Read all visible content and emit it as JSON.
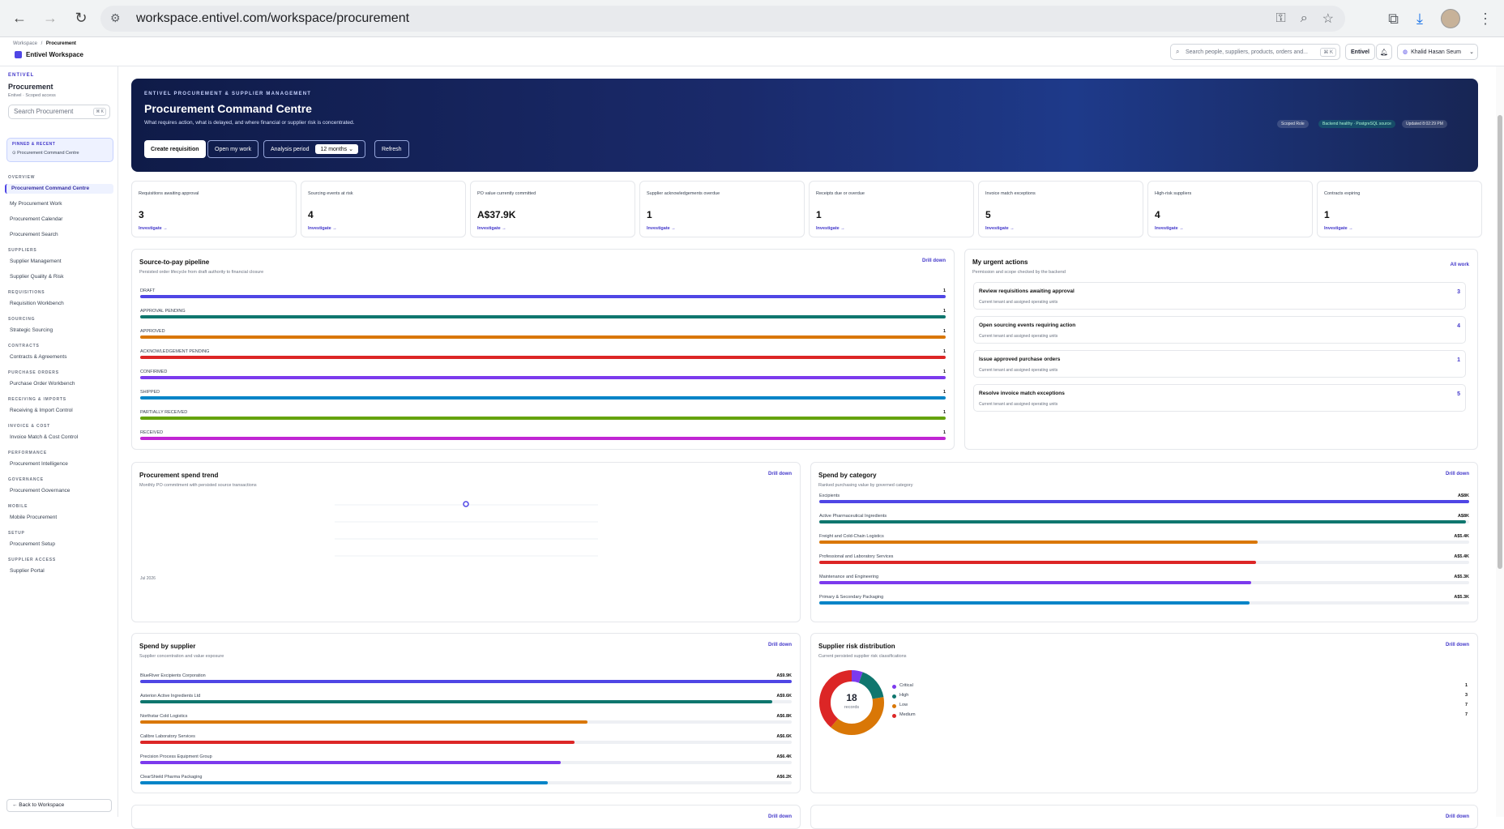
{
  "browser": {
    "url": "workspace.entivel.com/workspace/procurement"
  },
  "topbar": {
    "crumb_root": "Workspace",
    "crumb_sep": "/",
    "crumb_current": "Procurement",
    "workspace_name": "Entivel Workspace",
    "search_placeholder": "Search people, suppliers, products, orders and...",
    "search_kbd": "⌘ K",
    "tenant": "Entivel",
    "user": "Khalid Hasan Seum"
  },
  "sidebar": {
    "brand": "ENTIVEL",
    "title": "Procurement",
    "subtitle": "Entivel · Scoped access",
    "search_placeholder": "Search Procurement",
    "search_kbd": "⌘ K",
    "pinned_heading": "PINNED & RECENT",
    "pinned_item": "⊙ Procurement Command Centre",
    "sections": [
      {
        "label": "OVERVIEW",
        "items": [
          "Procurement Command Centre",
          "My Procurement Work",
          "Procurement Calendar",
          "Procurement Search"
        ]
      },
      {
        "label": "SUPPLIERS",
        "items": [
          "Supplier Management",
          "Supplier Quality & Risk"
        ]
      },
      {
        "label": "REQUISITIONS",
        "items": [
          "Requisition Workbench"
        ]
      },
      {
        "label": "SOURCING",
        "items": [
          "Strategic Sourcing"
        ]
      },
      {
        "label": "CONTRACTS",
        "items": [
          "Contracts & Agreements"
        ]
      },
      {
        "label": "PURCHASE ORDERS",
        "items": [
          "Purchase Order Workbench"
        ]
      },
      {
        "label": "RECEIVING & IMPORTS",
        "items": [
          "Receiving & Import Control"
        ]
      },
      {
        "label": "INVOICE & COST",
        "items": [
          "Invoice Match & Cost Control"
        ]
      },
      {
        "label": "PERFORMANCE",
        "items": [
          "Procurement Intelligence"
        ]
      },
      {
        "label": "GOVERNANCE",
        "items": [
          "Procurement Governance"
        ]
      },
      {
        "label": "MOBILE",
        "items": [
          "Mobile Procurement"
        ]
      },
      {
        "label": "SETUP",
        "items": [
          "Procurement Setup"
        ]
      },
      {
        "label": "SUPPLIER ACCESS",
        "items": [
          "Supplier Portal"
        ]
      }
    ],
    "back": "← Back to Workspace"
  },
  "hero": {
    "eyebrow": "ENTIVEL PROCUREMENT & SUPPLIER MANAGEMENT",
    "title": "Procurement Command Centre",
    "description": "What requires action, what is delayed, and where financial or supplier risk is concentrated.",
    "create": "Create requisition",
    "mywork": "Open my work",
    "period_label": "Analysis period",
    "period_value": "12 months",
    "refresh": "Refresh",
    "pill_role": "Scoped Role",
    "pill_backend": "Backend healthy · PostgreSQL source",
    "pill_updated": "Updated 8:02:29 PM"
  },
  "kpis": [
    {
      "label": "Requisitions awaiting approval",
      "value": "3",
      "action": "Investigate →"
    },
    {
      "label": "Sourcing events at risk",
      "value": "4",
      "action": "Investigate →"
    },
    {
      "label": "PO value currently committed",
      "value": "A$37.9K",
      "action": "Investigate →"
    },
    {
      "label": "Supplier acknowledgements overdue",
      "value": "1",
      "action": "Investigate →"
    },
    {
      "label": "Receipts due or overdue",
      "value": "1",
      "action": "Investigate →"
    },
    {
      "label": "Invoice match exceptions",
      "value": "5",
      "action": "Investigate →"
    },
    {
      "label": "High-risk suppliers",
      "value": "4",
      "action": "Investigate →"
    },
    {
      "label": "Contracts expiring",
      "value": "1",
      "action": "Investigate →"
    }
  ],
  "pipeline": {
    "title": "Source-to-pay pipeline",
    "subtitle": "Persisted order lifecycle from draft authority to financial closure",
    "drill": "Drill down",
    "rows": [
      {
        "label": "DRAFT",
        "value": "1",
        "fill": 1.0,
        "color": "#4f46e5"
      },
      {
        "label": "APPROVAL PENDING",
        "value": "1",
        "fill": 1.0,
        "color": "#0f766e"
      },
      {
        "label": "APPROVED",
        "value": "1",
        "fill": 1.0,
        "color": "#d97706"
      },
      {
        "label": "ACKNOWLEDGEMENT PENDING",
        "value": "1",
        "fill": 1.0,
        "color": "#dc2626"
      },
      {
        "label": "CONFIRMED",
        "value": "1",
        "fill": 1.0,
        "color": "#7c3aed"
      },
      {
        "label": "SHIPPED",
        "value": "1",
        "fill": 1.0,
        "color": "#0284c7"
      },
      {
        "label": "PARTIALLY RECEIVED",
        "value": "1",
        "fill": 1.0,
        "color": "#65a30d"
      },
      {
        "label": "RECEIVED",
        "value": "1",
        "fill": 1.0,
        "color": "#c026d3"
      }
    ]
  },
  "urgent": {
    "title": "My urgent actions",
    "subtitle": "Permission and scope checked by the backend",
    "all": "All work",
    "items": [
      {
        "title": "Review requisitions awaiting approval",
        "sub": "Current tenant and assigned operating units",
        "count": "3"
      },
      {
        "title": "Open sourcing events requiring action",
        "sub": "Current tenant and assigned operating units",
        "count": "4"
      },
      {
        "title": "Issue approved purchase orders",
        "sub": "Current tenant and assigned operating units",
        "count": "1"
      },
      {
        "title": "Resolve invoice match exceptions",
        "sub": "Current tenant and assigned operating units",
        "count": "5"
      }
    ]
  },
  "spend_trend": {
    "title": "Procurement spend trend",
    "subtitle": "Monthly PO commitment with persisted source transactions",
    "drill": "Drill down",
    "x_label": "Jul 2026"
  },
  "spend_category": {
    "title": "Spend by category",
    "subtitle": "Ranked purchasing value by governed category",
    "drill": "Drill down",
    "rows": [
      {
        "label": "Excipients",
        "value": "A$8K",
        "fill": 1.0,
        "color": "#4f46e5"
      },
      {
        "label": "Active Pharmaceutical Ingredients",
        "value": "A$8K",
        "fill": 0.995,
        "color": "#0f766e"
      },
      {
        "label": "Freight and Cold-Chain Logistics",
        "value": "A$5.4K",
        "fill": 0.675,
        "color": "#d97706"
      },
      {
        "label": "Professional and Laboratory Services",
        "value": "A$5.4K",
        "fill": 0.672,
        "color": "#dc2626"
      },
      {
        "label": "Maintenance and Engineering",
        "value": "A$5.3K",
        "fill": 0.665,
        "color": "#7c3aed"
      },
      {
        "label": "Primary & Secondary Packaging",
        "value": "A$5.3K",
        "fill": 0.662,
        "color": "#0284c7"
      }
    ]
  },
  "spend_supplier": {
    "title": "Spend by supplier",
    "subtitle": "Supplier concentration and value exposure",
    "drill": "Drill down",
    "rows": [
      {
        "label": "BlueRiver Excipients Corporation",
        "value": "A$9.9K",
        "fill": 1.0,
        "color": "#4f46e5"
      },
      {
        "label": "Asterion Active Ingredients Ltd",
        "value": "A$9.6K",
        "fill": 0.97,
        "color": "#0f766e"
      },
      {
        "label": "Northstar Cold Logistics",
        "value": "A$6.8K",
        "fill": 0.687,
        "color": "#d97706"
      },
      {
        "label": "Calibre Laboratory Services",
        "value": "A$6.6K",
        "fill": 0.667,
        "color": "#dc2626"
      },
      {
        "label": "Precision Process Equipment Group",
        "value": "A$6.4K",
        "fill": 0.646,
        "color": "#7c3aed"
      },
      {
        "label": "ClearShield Pharma Packaging",
        "value": "A$6.2K",
        "fill": 0.626,
        "color": "#0284c7"
      }
    ]
  },
  "risk": {
    "title": "Supplier risk distribution",
    "subtitle": "Current persisted supplier risk classifications",
    "drill": "Drill down",
    "total": "18",
    "total_label": "records"
  },
  "bottom": {
    "left_drill": "Drill down",
    "right_drill": "Drill down"
  },
  "chart_data": {
    "type": "pie",
    "categories": [
      "Critical",
      "High",
      "Low",
      "Medium"
    ],
    "values": [
      1,
      3,
      7,
      7
    ],
    "colors": [
      "#7c3aed",
      "#0f766e",
      "#d97706",
      "#dc2626"
    ],
    "title": "Supplier risk distribution"
  }
}
